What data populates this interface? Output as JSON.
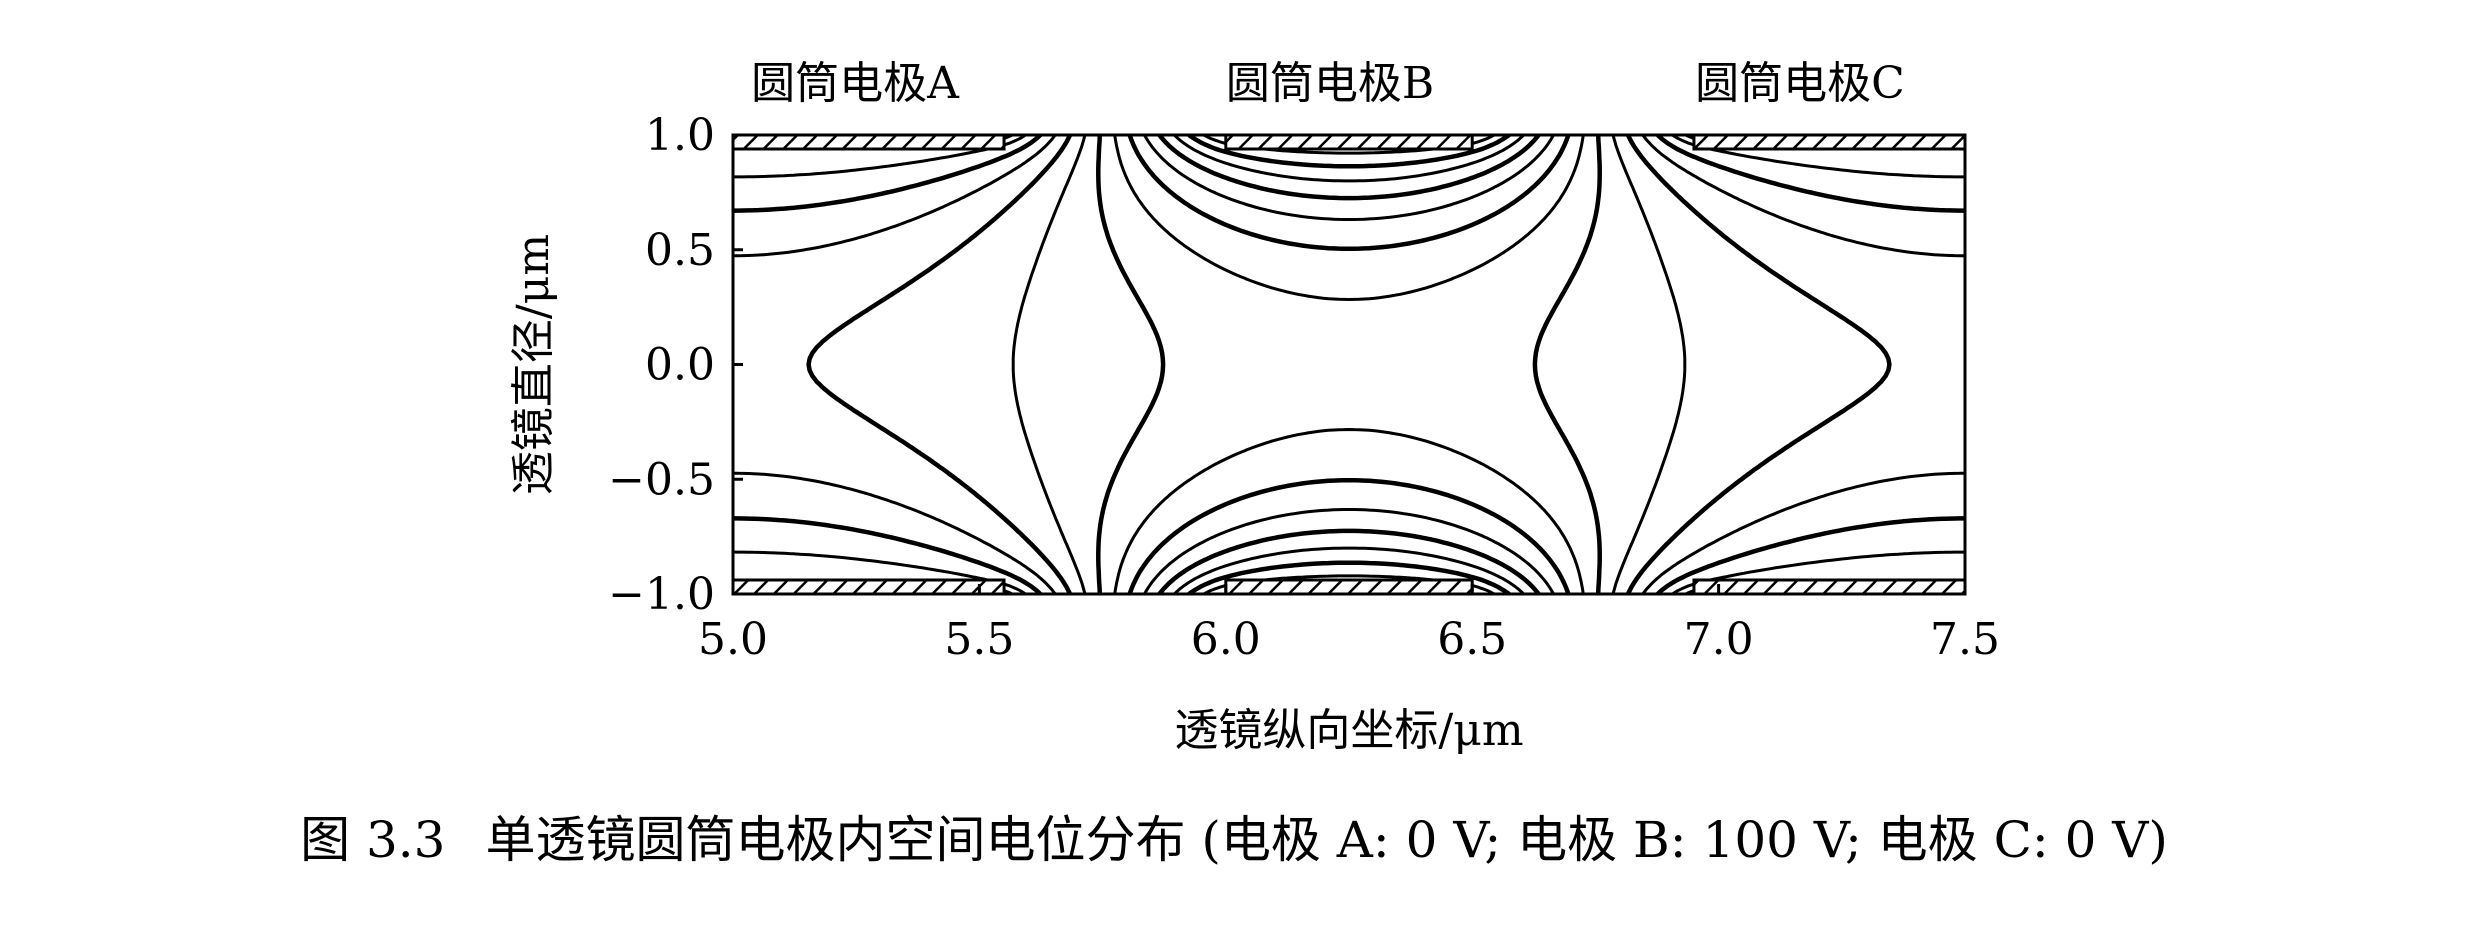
{
  "chart_data": {
    "type": "contour",
    "title": "",
    "xlabel": "透镜纵向坐标/μm",
    "ylabel": "透镜直径/μm",
    "xlim": [
      5.0,
      7.5
    ],
    "ylim": [
      -1.0,
      1.0
    ],
    "x_ticks": [
      "5.0",
      "5.5",
      "6.0",
      "6.5",
      "7.0",
      "7.5"
    ],
    "y_ticks": [
      "1.0",
      "0.5",
      "0.0",
      "−0.5",
      "−1.0"
    ],
    "electrodes": [
      {
        "label": "圆筒电极A",
        "x_range": [
          5.0,
          5.55
        ],
        "voltage": "0 V"
      },
      {
        "label": "圆筒电极B",
        "x_range": [
          6.0,
          6.5
        ],
        "voltage": "100 V"
      },
      {
        "label": "圆筒电极C",
        "x_range": [
          6.95,
          7.5
        ],
        "voltage": "0 V"
      }
    ],
    "grid": false
  },
  "caption": {
    "number": "图 3.3",
    "text": "单透镜圆筒电极内空间电位分布 (电极 A: 0 V; 电极 B: 100 V; 电极 C: 0 V)"
  }
}
